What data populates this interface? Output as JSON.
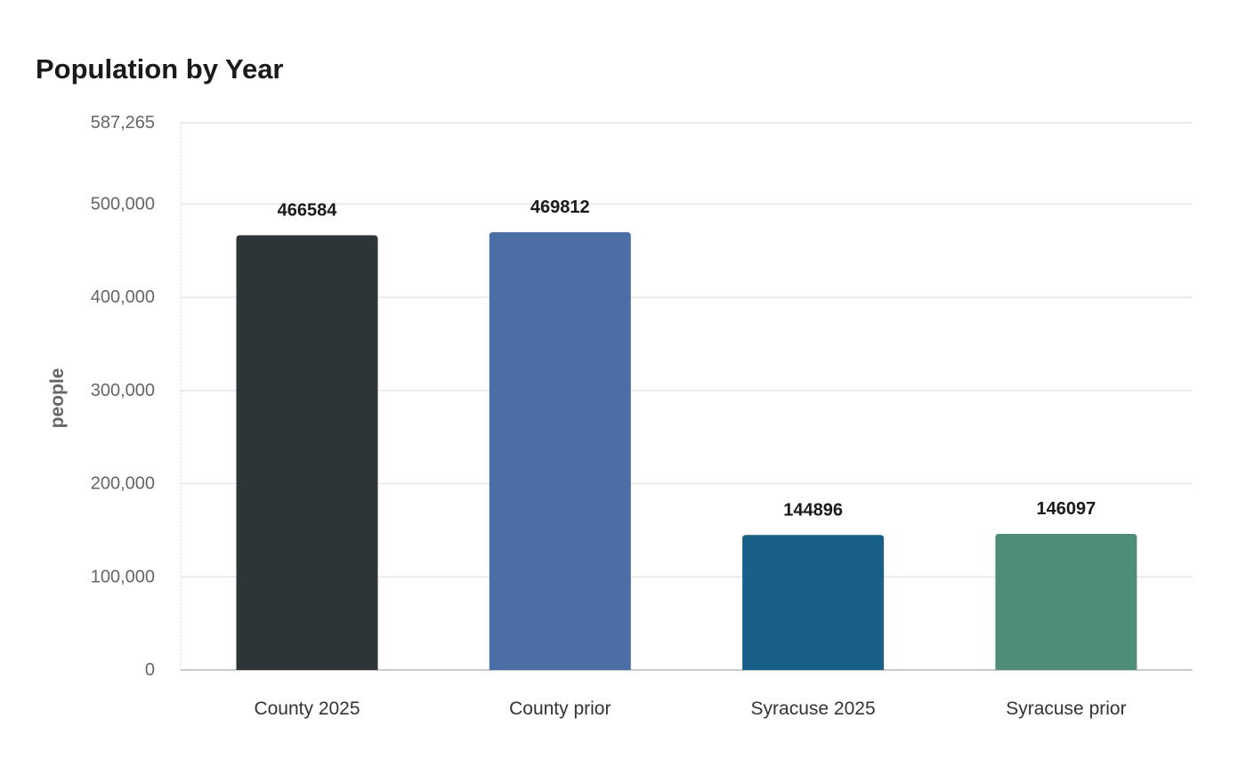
{
  "chart_data": {
    "type": "bar",
    "title": "Population by Year",
    "ylabel": "people",
    "xlabel": "",
    "categories": [
      "County 2025",
      "County prior",
      "Syracuse 2025",
      "Syracuse prior"
    ],
    "values": [
      466584,
      469812,
      144896,
      146097
    ],
    "value_labels": [
      "466584",
      "469812",
      "144896",
      "146097"
    ],
    "bar_colors": [
      "#2d3538",
      "#4a6fa5",
      "#186088",
      "#4f8c7a"
    ],
    "ylim": [
      0,
      587265
    ],
    "yticks": [
      0,
      100000,
      200000,
      300000,
      400000,
      500000,
      587265
    ],
    "ytick_labels": [
      "0",
      "100,000",
      "200,000",
      "300,000",
      "400,000",
      "500,000",
      "587,265"
    ],
    "grid": true,
    "legend": "none"
  }
}
